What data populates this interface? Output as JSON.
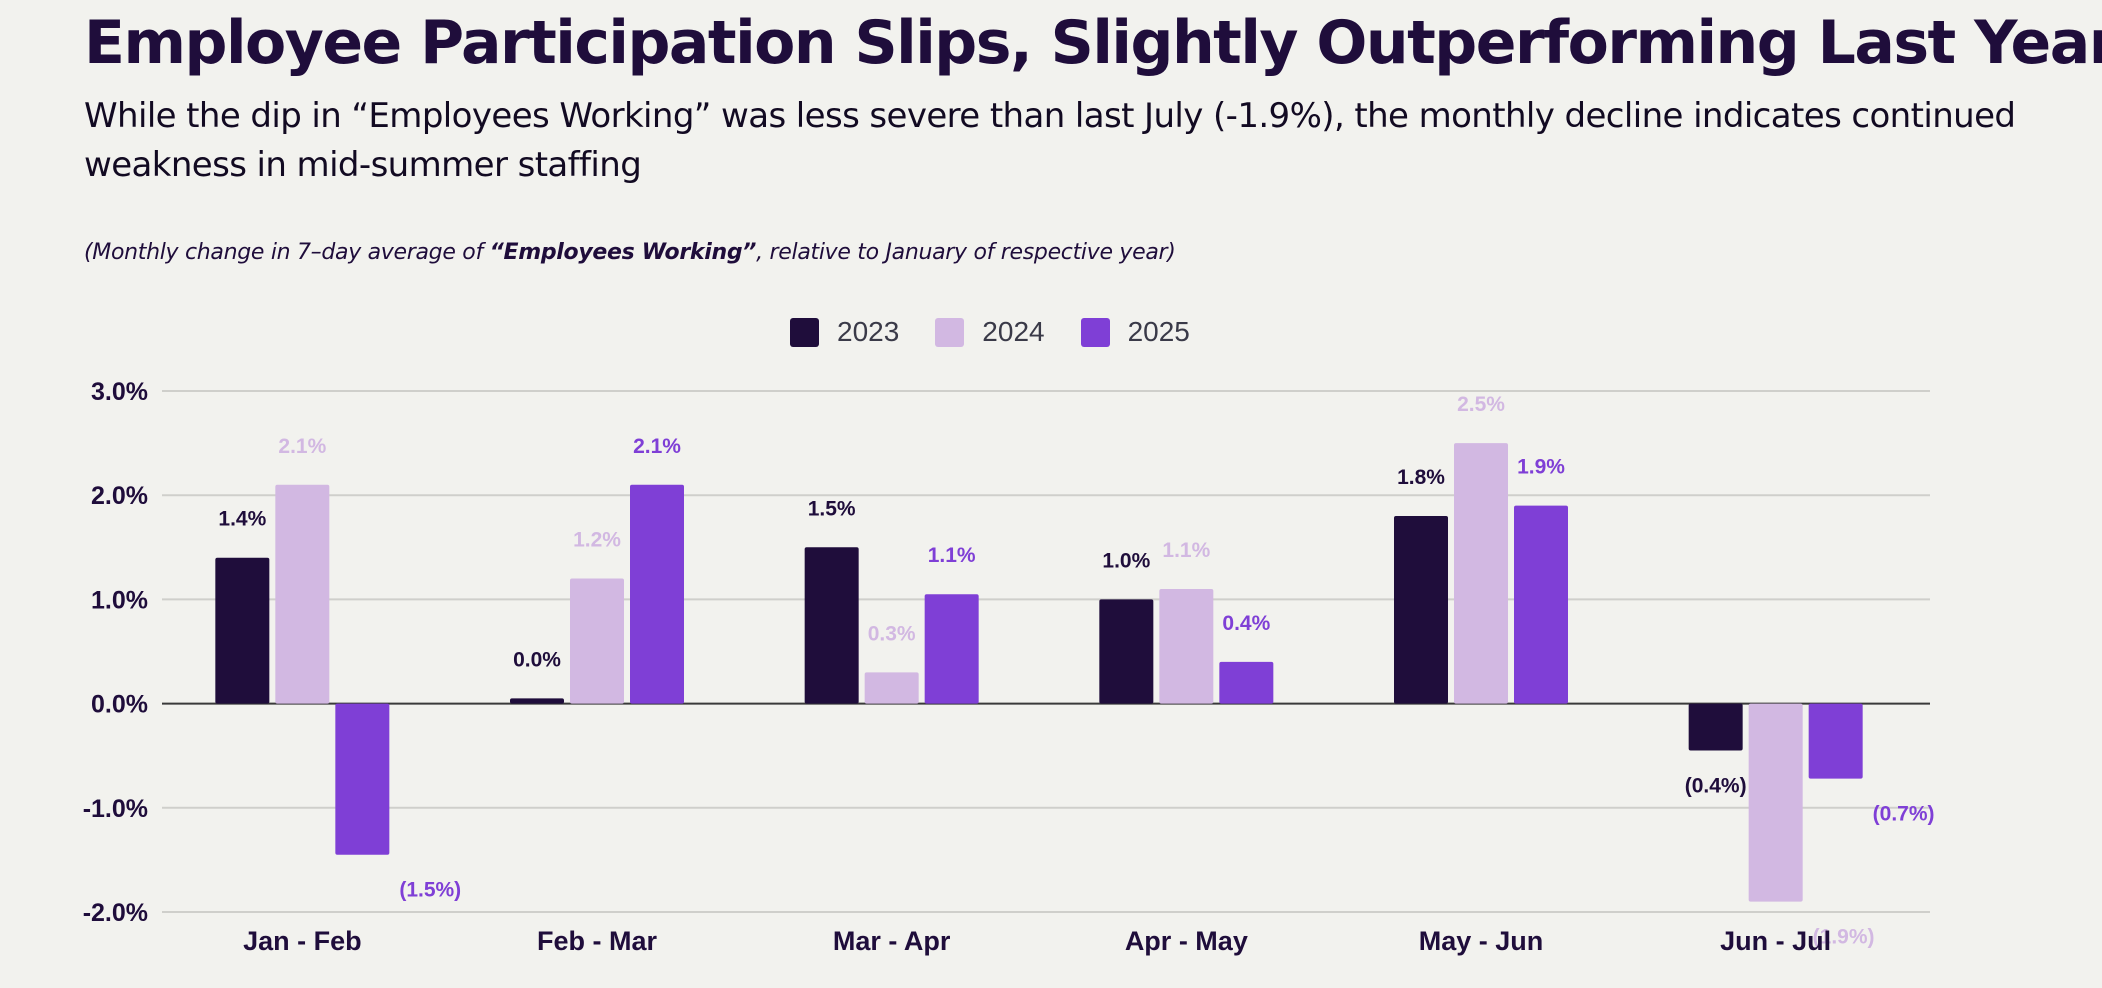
{
  "header": {
    "title": "Employee Participation Slips, Slightly Outperforming Last Year",
    "subtitle": "While the dip in “Employees Working” was less severe than last July (-1.9%), the monthly decline indicates continued weakness in mid-summer staffing",
    "note_prefix": "(Monthly change in 7–day average of ",
    "note_bold": "“Employees Working”",
    "note_suffix": ", relative to January of respective year)"
  },
  "chart_data": {
    "type": "bar",
    "categories": [
      "Jan - Feb",
      "Feb - Mar",
      "Mar - Apr",
      "Apr - May",
      "May - Jun",
      "Jun - Jul"
    ],
    "series": [
      {
        "name": "2023",
        "color": "#1f0d3b",
        "values": [
          1.4,
          0.05,
          1.5,
          1.0,
          1.8,
          -0.45
        ],
        "labels": [
          "1.4%",
          "0.0%",
          "1.5%",
          "1.0%",
          "1.8%",
          "(0.4%)"
        ]
      },
      {
        "name": "2024",
        "color": "#d2b8e2",
        "values": [
          2.1,
          1.2,
          0.3,
          1.1,
          2.5,
          -1.9
        ],
        "labels": [
          "2.1%",
          "1.2%",
          "0.3%",
          "1.1%",
          "2.5%",
          "(1.9%)"
        ]
      },
      {
        "name": "2025",
        "color": "#7f3fd6",
        "values": [
          -1.45,
          2.1,
          1.05,
          0.4,
          1.9,
          -0.72
        ],
        "labels": [
          "(1.5%)",
          "2.1%",
          "1.1%",
          "0.4%",
          "1.9%",
          "(0.7%)"
        ]
      }
    ],
    "yticks": [
      "3.0%",
      "2.0%",
      "1.0%",
      "0.0%",
      "-1.0%",
      "-2.0%"
    ],
    "ytick_values": [
      3,
      2,
      1,
      0,
      -1,
      -2
    ],
    "ylim": [
      -2,
      3
    ],
    "grid": true,
    "legend": "top-center"
  }
}
